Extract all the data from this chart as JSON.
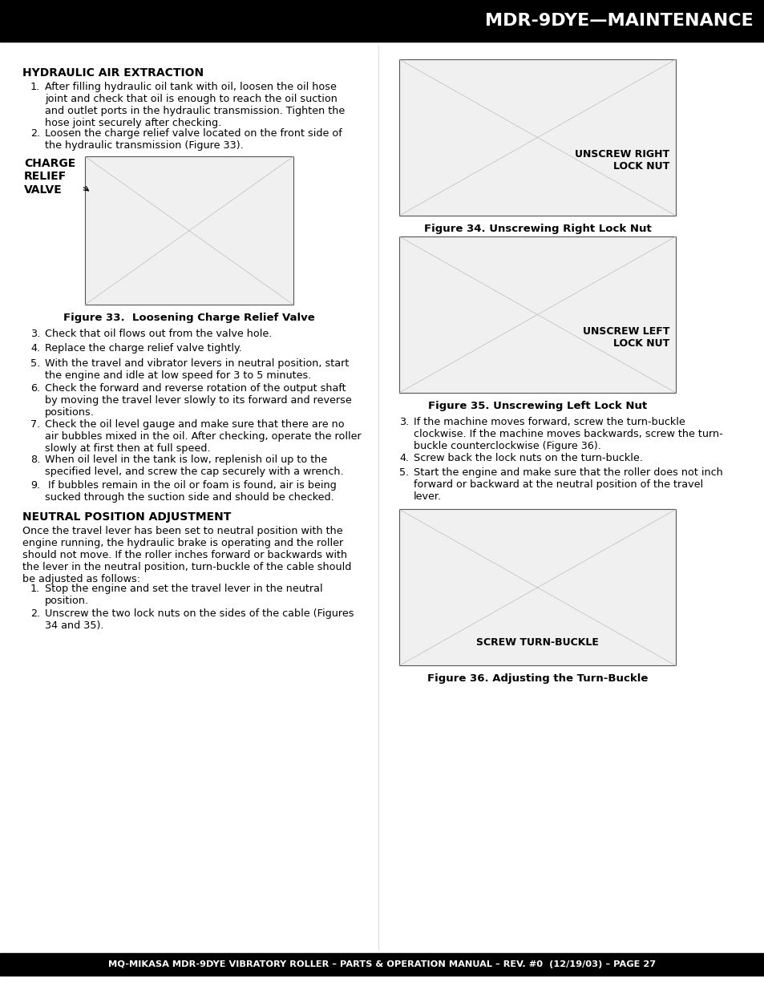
{
  "page_bg": "#ffffff",
  "header_bg": "#000000",
  "header_text": "MDR-9DYE—MAINTENANCE",
  "header_text_color": "#ffffff",
  "footer_bg": "#000000",
  "footer_text": "MQ-MIKASA MDR-9DYE VIBRATORY ROLLER – PARTS & OPERATION MANUAL – REV. #0  (12/19/03) – PAGE 27",
  "footer_text_color": "#ffffff",
  "section1_title": "HYDRAULIC AIR EXTRACTION",
  "section2_title": "NEUTRAL POSITION ADJUSTMENT",
  "item1": "After filling hydraulic oil tank with oil, loosen the oil hose joint and check that oil is enough to reach the oil suction and outlet ports in the hydraulic transmission. Tighten the hose joint securely after checking.",
  "item2": "Loosen the charge relief valve located on the front side of the hydraulic transmission (Figure 33).",
  "item3": "Check that oil flows out from the valve hole.",
  "item4": "Replace the charge relief valve tightly.",
  "item5": "With the travel and vibrator levers in neutral position, start the engine and idle at low speed for 3 to 5 minutes.",
  "item6": "Check the forward and reverse rotation of the output shaft by moving the travel lever slowly to its forward and reverse positions.",
  "item7": "Check the oil level gauge and make sure that there are no air bubbles mixed in the oil. After checking, operate the roller slowly at first then at full speed.",
  "item8": "When oil level in the tank is low, replenish oil up to the specified level, and screw the cap securely with a wrench.",
  "item9": " If bubbles remain in the oil or foam is found, air is being sucked through the suction side and should be checked.",
  "fig33_label": "CHARGE\nRELIEF\nVALVE",
  "fig33_caption": "Figure 33.  Loosening Charge Relief Valve",
  "neutral_intro": "Once the travel lever has been set to neutral position with the engine running, the hydraulic brake is operating and the roller should not move. If the roller inches forward or backwards with the lever in the neutral position, turn-buckle of the cable should be adjusted as follows:",
  "neutral1": "Stop the engine and set the travel lever in the neutral position.",
  "neutral2": "Unscrew the two lock nuts on the sides of the cable (Figures 34 and 35).",
  "right3": "If the machine moves forward, screw the turn-buckle clockwise. If the machine moves backwards, screw the turn-buckle counterclockwise (Figure 36).",
  "right4": "Screw back the lock nuts on the turn-buckle.",
  "right5": "Start the engine and make sure that the roller does not inch forward or backward at the neutral position of the travel lever.",
  "fig34_caption": "Figure 34. Unscrewing Right Lock Nut",
  "fig34_label": "UNSCREW RIGHT\nLOCK NUT",
  "fig35_caption": "Figure 35. Unscrewing Left Lock Nut",
  "fig35_label": "UNSCREW LEFT\nLOCK NUT",
  "fig36_caption": "Figure 36. Adjusting the Turn-Buckle",
  "fig36_label": "SCREW TURN-BUCKLE",
  "text_color": "#000000",
  "body_fontsize": 9.2,
  "header_fontsize": 16,
  "section_fontsize": 10,
  "footer_fontsize": 8.2
}
